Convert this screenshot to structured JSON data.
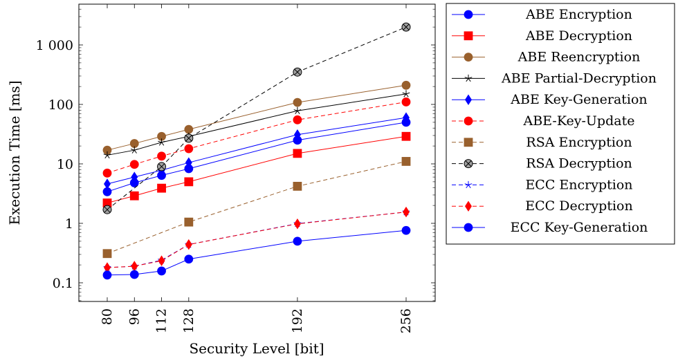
{
  "chart_data": {
    "type": "line",
    "x_scale": "linear",
    "y_scale": "log",
    "xlabel": "Security Level [bit]",
    "ylabel": "Execution Time [ms]",
    "xlim": [
      70,
      265
    ],
    "ylim": [
      0.05,
      6000
    ],
    "x_ticks": [
      80,
      96,
      112,
      128,
      192,
      256
    ],
    "x_tick_labels": [
      "80",
      "96",
      "112",
      "128",
      "192",
      "256"
    ],
    "y_ticks": [
      0.1,
      1,
      10,
      100,
      1000
    ],
    "y_tick_labels": [
      "0.1",
      "1",
      "10",
      "100",
      "1 000"
    ],
    "grid": false,
    "legend_position": "outside-right",
    "series": [
      {
        "name": "ABE Encryption",
        "color": "#0000ff",
        "marker": "circle",
        "dash": "solid",
        "x": [
          80,
          96,
          112,
          128,
          192,
          256
        ],
        "y": [
          3.4,
          4.8,
          6.4,
          8.3,
          25,
          50
        ]
      },
      {
        "name": "ABE Decryption",
        "color": "#ff0000",
        "marker": "square",
        "dash": "solid",
        "x": [
          80,
          96,
          112,
          128,
          192,
          256
        ],
        "y": [
          2.2,
          2.9,
          3.9,
          5.0,
          15,
          29
        ]
      },
      {
        "name": "ABE Reencryption",
        "color": "#99602d",
        "marker": "circle",
        "dash": "solid",
        "x": [
          80,
          96,
          112,
          128,
          192,
          256
        ],
        "y": [
          17,
          22,
          29,
          38,
          108,
          210
        ]
      },
      {
        "name": "ABE Partial-Decryption",
        "color": "#000000",
        "marker": "star",
        "dash": "solid",
        "x": [
          80,
          96,
          112,
          128,
          192,
          256
        ],
        "y": [
          14,
          17,
          23,
          29,
          78,
          150
        ]
      },
      {
        "name": "ABE Key-Generation",
        "color": "#0000ff",
        "marker": "diamond",
        "dash": "solid",
        "x": [
          80,
          96,
          112,
          128,
          192,
          256
        ],
        "y": [
          4.6,
          6.0,
          7.8,
          10.5,
          31,
          60
        ]
      },
      {
        "name": "ABE-Key-Update",
        "color": "#ff0000",
        "marker": "circle",
        "dash": "dashed",
        "x": [
          80,
          96,
          112,
          128,
          192,
          256
        ],
        "y": [
          7.0,
          9.8,
          13.5,
          18,
          55,
          110
        ]
      },
      {
        "name": "RSA Encryption",
        "color": "#99602d",
        "marker": "square",
        "dash": "dashed",
        "x": [
          80,
          128,
          192,
          256
        ],
        "y": [
          0.31,
          1.05,
          4.2,
          11
        ]
      },
      {
        "name": "RSA Decryption",
        "color": "#000000",
        "marker": "otimes",
        "dash": "dashed",
        "x": [
          80,
          112,
          128,
          192,
          256
        ],
        "y": [
          1.7,
          9.0,
          27,
          350,
          2000
        ]
      },
      {
        "name": "ECC Encryption",
        "color": "#0000ff",
        "marker": "star",
        "dash": "dashed",
        "x": [
          80,
          96,
          112,
          128,
          192,
          256
        ],
        "y": [
          0.18,
          0.19,
          0.24,
          0.44,
          0.99,
          1.55
        ]
      },
      {
        "name": "ECC Decryption",
        "color": "#ff0000",
        "marker": "diamond",
        "dash": "dashed",
        "x": [
          80,
          96,
          112,
          128,
          192,
          256
        ],
        "y": [
          0.18,
          0.19,
          0.235,
          0.44,
          0.98,
          1.55
        ]
      },
      {
        "name": "ECC Key-Generation",
        "color": "#0000ff",
        "marker": "circle",
        "dash": "solid",
        "x": [
          80,
          96,
          112,
          128,
          192,
          256
        ],
        "y": [
          0.135,
          0.138,
          0.158,
          0.25,
          0.5,
          0.76
        ]
      }
    ]
  }
}
